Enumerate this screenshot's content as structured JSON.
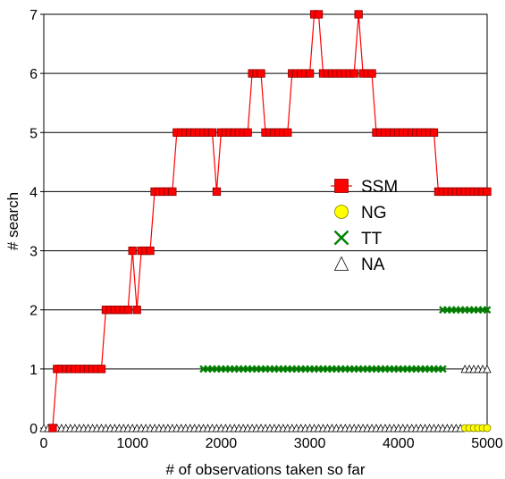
{
  "chart_data": {
    "type": "scatter",
    "xlabel": "# of observations taken so far",
    "ylabel": "# search",
    "xlim": [
      0,
      5000
    ],
    "ylim": [
      0,
      7
    ],
    "xticks": [
      0,
      1000,
      2000,
      3000,
      4000,
      5000
    ],
    "yticks": [
      0,
      1,
      2,
      3,
      4,
      5,
      6,
      7
    ],
    "grid": "horizontal",
    "legend_position": "center-right",
    "series": [
      {
        "name": "SSM",
        "marker": "square",
        "color": "#ff0000",
        "connected": true,
        "points": [
          [
            100,
            0
          ],
          [
            150,
            1
          ],
          [
            200,
            1
          ],
          [
            250,
            1
          ],
          [
            300,
            1
          ],
          [
            350,
            1
          ],
          [
            400,
            1
          ],
          [
            450,
            1
          ],
          [
            500,
            1
          ],
          [
            550,
            1
          ],
          [
            600,
            1
          ],
          [
            650,
            1
          ],
          [
            700,
            2
          ],
          [
            750,
            2
          ],
          [
            800,
            2
          ],
          [
            850,
            2
          ],
          [
            900,
            2
          ],
          [
            950,
            2
          ],
          [
            1000,
            3
          ],
          [
            1050,
            2
          ],
          [
            1100,
            3
          ],
          [
            1150,
            3
          ],
          [
            1200,
            3
          ],
          [
            1250,
            4
          ],
          [
            1300,
            4
          ],
          [
            1350,
            4
          ],
          [
            1400,
            4
          ],
          [
            1450,
            4
          ],
          [
            1500,
            5
          ],
          [
            1550,
            5
          ],
          [
            1600,
            5
          ],
          [
            1650,
            5
          ],
          [
            1700,
            5
          ],
          [
            1750,
            5
          ],
          [
            1800,
            5
          ],
          [
            1850,
            5
          ],
          [
            1900,
            5
          ],
          [
            1950,
            4
          ],
          [
            2000,
            5
          ],
          [
            2050,
            5
          ],
          [
            2100,
            5
          ],
          [
            2150,
            5
          ],
          [
            2200,
            5
          ],
          [
            2250,
            5
          ],
          [
            2300,
            5
          ],
          [
            2350,
            6
          ],
          [
            2400,
            6
          ],
          [
            2450,
            6
          ],
          [
            2500,
            5
          ],
          [
            2550,
            5
          ],
          [
            2600,
            5
          ],
          [
            2650,
            5
          ],
          [
            2700,
            5
          ],
          [
            2750,
            5
          ],
          [
            2800,
            6
          ],
          [
            2850,
            6
          ],
          [
            2900,
            6
          ],
          [
            2950,
            6
          ],
          [
            3000,
            6
          ],
          [
            3050,
            7
          ],
          [
            3100,
            7
          ],
          [
            3150,
            6
          ],
          [
            3200,
            6
          ],
          [
            3250,
            6
          ],
          [
            3300,
            6
          ],
          [
            3350,
            6
          ],
          [
            3400,
            6
          ],
          [
            3450,
            6
          ],
          [
            3500,
            6
          ],
          [
            3550,
            7
          ],
          [
            3600,
            6
          ],
          [
            3650,
            6
          ],
          [
            3700,
            6
          ],
          [
            3750,
            5
          ],
          [
            3800,
            5
          ],
          [
            3850,
            5
          ],
          [
            3900,
            5
          ],
          [
            3950,
            5
          ],
          [
            4000,
            5
          ],
          [
            4050,
            5
          ],
          [
            4100,
            5
          ],
          [
            4150,
            5
          ],
          [
            4200,
            5
          ],
          [
            4250,
            5
          ],
          [
            4300,
            5
          ],
          [
            4350,
            5
          ],
          [
            4400,
            5
          ],
          [
            4450,
            4
          ],
          [
            4500,
            4
          ],
          [
            4550,
            4
          ],
          [
            4600,
            4
          ],
          [
            4650,
            4
          ],
          [
            4700,
            4
          ],
          [
            4750,
            4
          ],
          [
            4800,
            4
          ],
          [
            4850,
            4
          ],
          [
            4900,
            4
          ],
          [
            4950,
            4
          ],
          [
            5000,
            4
          ]
        ]
      },
      {
        "name": "NG",
        "marker": "circle",
        "color": "#ffff00",
        "connected": false,
        "points": [
          [
            4750,
            0
          ],
          [
            4800,
            0
          ],
          [
            4850,
            0
          ],
          [
            4900,
            0
          ],
          [
            4950,
            0
          ],
          [
            5000,
            0
          ]
        ]
      },
      {
        "name": "TT",
        "marker": "cross",
        "color": "#008000",
        "connected": false,
        "points": [
          [
            1800,
            1
          ],
          [
            1850,
            1
          ],
          [
            1900,
            1
          ],
          [
            1950,
            1
          ],
          [
            2000,
            1
          ],
          [
            2050,
            1
          ],
          [
            2100,
            1
          ],
          [
            2150,
            1
          ],
          [
            2200,
            1
          ],
          [
            2250,
            1
          ],
          [
            2300,
            1
          ],
          [
            2350,
            1
          ],
          [
            2400,
            1
          ],
          [
            2450,
            1
          ],
          [
            2500,
            1
          ],
          [
            2550,
            1
          ],
          [
            2600,
            1
          ],
          [
            2650,
            1
          ],
          [
            2700,
            1
          ],
          [
            2750,
            1
          ],
          [
            2800,
            1
          ],
          [
            2850,
            1
          ],
          [
            2900,
            1
          ],
          [
            2950,
            1
          ],
          [
            3000,
            1
          ],
          [
            3050,
            1
          ],
          [
            3100,
            1
          ],
          [
            3150,
            1
          ],
          [
            3200,
            1
          ],
          [
            3250,
            1
          ],
          [
            3300,
            1
          ],
          [
            3350,
            1
          ],
          [
            3400,
            1
          ],
          [
            3450,
            1
          ],
          [
            3500,
            1
          ],
          [
            3550,
            1
          ],
          [
            3600,
            1
          ],
          [
            3650,
            1
          ],
          [
            3700,
            1
          ],
          [
            3750,
            1
          ],
          [
            3800,
            1
          ],
          [
            3850,
            1
          ],
          [
            3900,
            1
          ],
          [
            3950,
            1
          ],
          [
            4000,
            1
          ],
          [
            4050,
            1
          ],
          [
            4100,
            1
          ],
          [
            4150,
            1
          ],
          [
            4200,
            1
          ],
          [
            4250,
            1
          ],
          [
            4300,
            1
          ],
          [
            4350,
            1
          ],
          [
            4400,
            1
          ],
          [
            4450,
            1
          ],
          [
            4500,
            1
          ],
          [
            4500,
            2
          ],
          [
            4550,
            2
          ],
          [
            4600,
            2
          ],
          [
            4650,
            2
          ],
          [
            4700,
            2
          ],
          [
            4750,
            2
          ],
          [
            4800,
            2
          ],
          [
            4850,
            2
          ],
          [
            4900,
            2
          ],
          [
            4950,
            2
          ],
          [
            5000,
            2
          ]
        ]
      },
      {
        "name": "NA",
        "marker": "triangle",
        "color": "#ffffff",
        "connected": false,
        "points": [
          [
            0,
            0
          ],
          [
            50,
            0
          ],
          [
            100,
            0
          ],
          [
            150,
            0
          ],
          [
            200,
            0
          ],
          [
            250,
            0
          ],
          [
            300,
            0
          ],
          [
            350,
            0
          ],
          [
            400,
            0
          ],
          [
            450,
            0
          ],
          [
            500,
            0
          ],
          [
            550,
            0
          ],
          [
            600,
            0
          ],
          [
            650,
            0
          ],
          [
            700,
            0
          ],
          [
            750,
            0
          ],
          [
            800,
            0
          ],
          [
            850,
            0
          ],
          [
            900,
            0
          ],
          [
            950,
            0
          ],
          [
            1000,
            0
          ],
          [
            1050,
            0
          ],
          [
            1100,
            0
          ],
          [
            1150,
            0
          ],
          [
            1200,
            0
          ],
          [
            1250,
            0
          ],
          [
            1300,
            0
          ],
          [
            1350,
            0
          ],
          [
            1400,
            0
          ],
          [
            1450,
            0
          ],
          [
            1500,
            0
          ],
          [
            1550,
            0
          ],
          [
            1600,
            0
          ],
          [
            1650,
            0
          ],
          [
            1700,
            0
          ],
          [
            1750,
            0
          ],
          [
            1800,
            0
          ],
          [
            1850,
            0
          ],
          [
            1900,
            0
          ],
          [
            1950,
            0
          ],
          [
            2000,
            0
          ],
          [
            2050,
            0
          ],
          [
            2100,
            0
          ],
          [
            2150,
            0
          ],
          [
            2200,
            0
          ],
          [
            2250,
            0
          ],
          [
            2300,
            0
          ],
          [
            2350,
            0
          ],
          [
            2400,
            0
          ],
          [
            2450,
            0
          ],
          [
            2500,
            0
          ],
          [
            2550,
            0
          ],
          [
            2600,
            0
          ],
          [
            2650,
            0
          ],
          [
            2700,
            0
          ],
          [
            2750,
            0
          ],
          [
            2800,
            0
          ],
          [
            2850,
            0
          ],
          [
            2900,
            0
          ],
          [
            2950,
            0
          ],
          [
            3000,
            0
          ],
          [
            3050,
            0
          ],
          [
            3100,
            0
          ],
          [
            3150,
            0
          ],
          [
            3200,
            0
          ],
          [
            3250,
            0
          ],
          [
            3300,
            0
          ],
          [
            3350,
            0
          ],
          [
            3400,
            0
          ],
          [
            3450,
            0
          ],
          [
            3500,
            0
          ],
          [
            3550,
            0
          ],
          [
            3600,
            0
          ],
          [
            3650,
            0
          ],
          [
            3700,
            0
          ],
          [
            3750,
            0
          ],
          [
            3800,
            0
          ],
          [
            3850,
            0
          ],
          [
            3900,
            0
          ],
          [
            3950,
            0
          ],
          [
            4000,
            0
          ],
          [
            4050,
            0
          ],
          [
            4100,
            0
          ],
          [
            4150,
            0
          ],
          [
            4200,
            0
          ],
          [
            4250,
            0
          ],
          [
            4300,
            0
          ],
          [
            4350,
            0
          ],
          [
            4400,
            0
          ],
          [
            4450,
            0
          ],
          [
            4500,
            0
          ],
          [
            4550,
            0
          ],
          [
            4600,
            0
          ],
          [
            4650,
            0
          ],
          [
            4700,
            0
          ],
          [
            4750,
            1
          ],
          [
            4800,
            1
          ],
          [
            4850,
            1
          ],
          [
            4900,
            1
          ],
          [
            4950,
            1
          ],
          [
            5000,
            1
          ]
        ]
      }
    ]
  }
}
